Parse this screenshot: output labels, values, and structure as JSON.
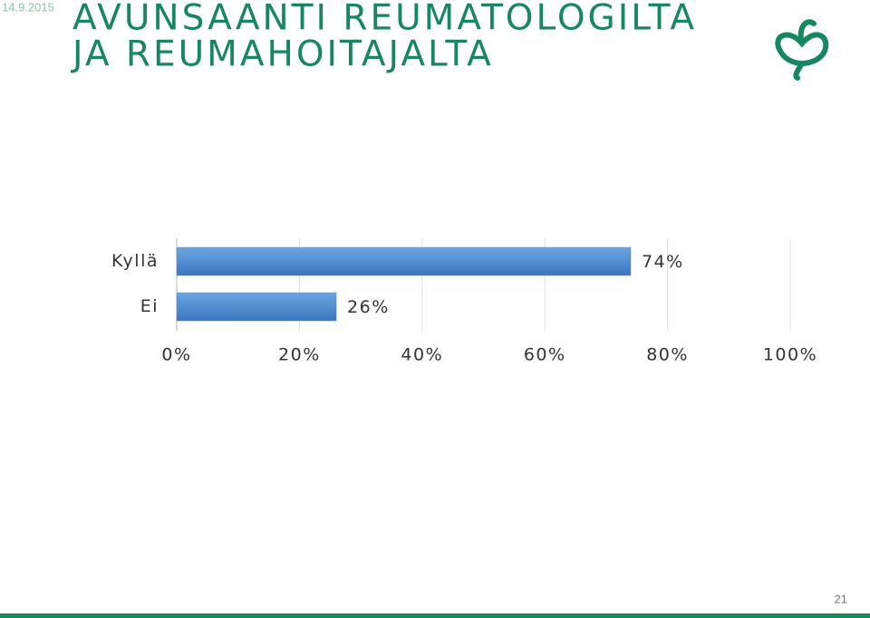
{
  "slide": {
    "date": "14.9.2015",
    "page_number": "21"
  },
  "chart_data": {
    "type": "bar",
    "orientation": "horizontal",
    "title": [
      "AVUNSAANTI REUMATOLOGILTA",
      "JA REUMAHOITAJALTA"
    ],
    "categories": [
      "Kyllä",
      "Ei"
    ],
    "values": [
      74,
      26
    ],
    "value_labels": [
      "74%",
      "26%"
    ],
    "color": "#4a8ad3",
    "xlim": [
      0,
      100
    ],
    "xticks": [
      {
        "value": 0,
        "label": "0%"
      },
      {
        "value": 20,
        "label": "20%"
      },
      {
        "value": 40,
        "label": "40%"
      },
      {
        "value": 60,
        "label": "60%"
      },
      {
        "value": 80,
        "label": "80%"
      },
      {
        "value": 100,
        "label": "100%"
      }
    ],
    "grid": true
  }
}
